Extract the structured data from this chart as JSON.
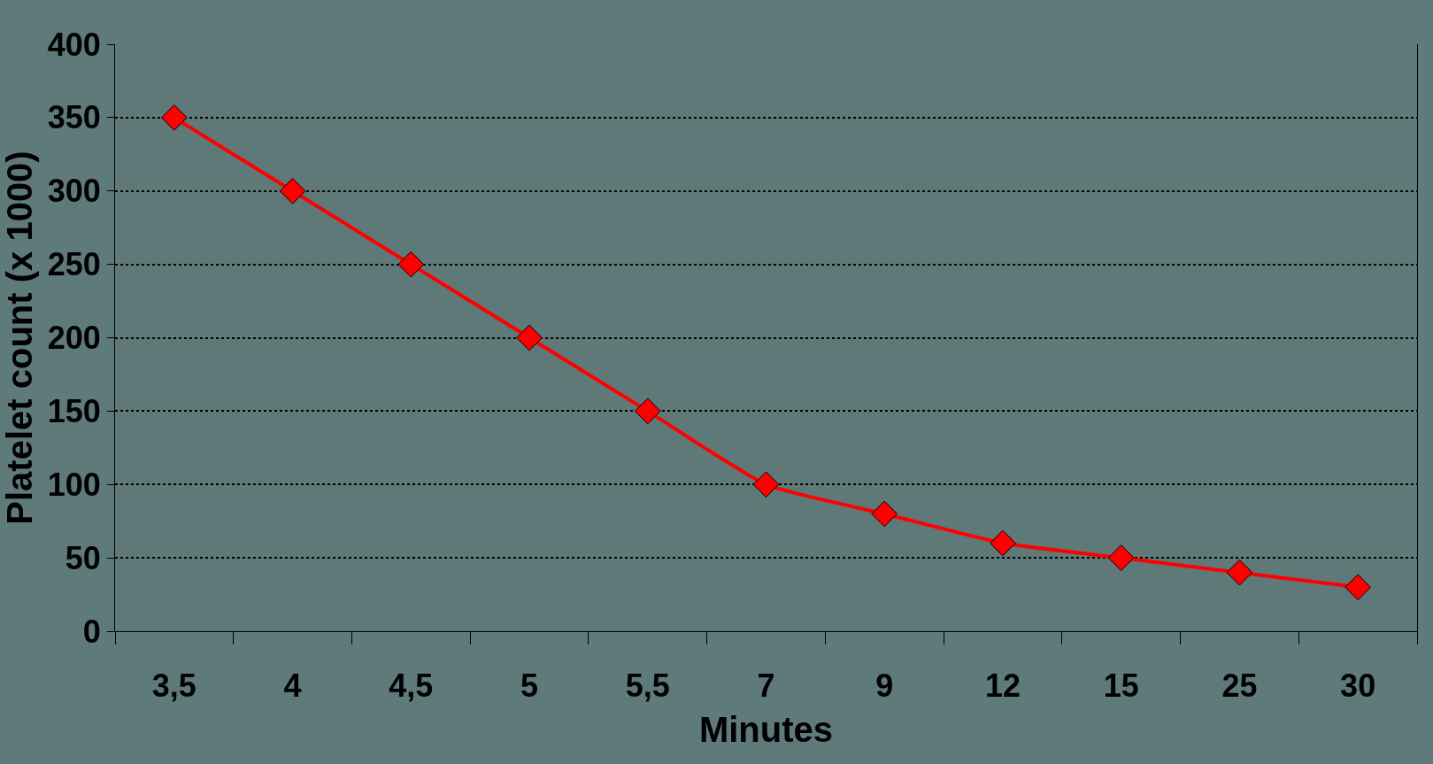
{
  "chart_data": {
    "type": "line",
    "xlabel": "Minutes",
    "ylabel": "Platelet count (x 1000)",
    "categories": [
      "3,5",
      "4",
      "4,5",
      "5",
      "5,5",
      "7",
      "9",
      "12",
      "15",
      "25",
      "30"
    ],
    "series": [
      {
        "color": "#ff0000",
        "values": [
          350,
          300,
          250,
          200,
          150,
          100,
          80,
          60,
          50,
          40,
          30
        ]
      }
    ],
    "ylim": [
      0,
      400
    ],
    "yticks": [
      0,
      50,
      100,
      150,
      200,
      250,
      300,
      350,
      400
    ],
    "grid": "y",
    "marker": "diamond",
    "line_style": "solid"
  }
}
